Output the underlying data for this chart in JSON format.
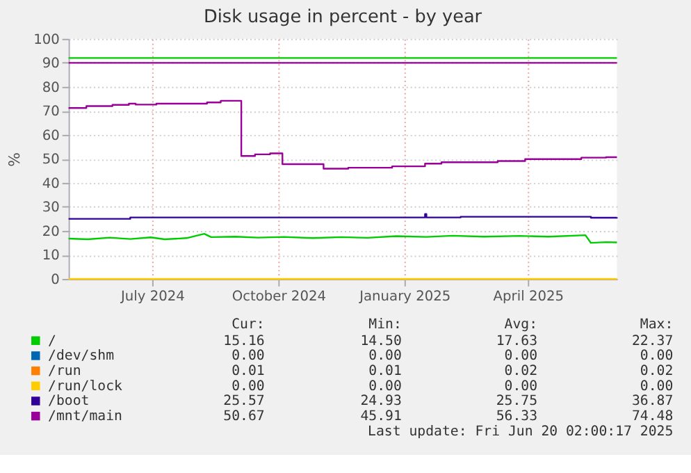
{
  "chart_data": {
    "type": "line",
    "title": "Disk usage in percent - by year",
    "ylabel": "%",
    "xlim": [
      "2024-05-16",
      "2025-06-20"
    ],
    "xticks": [
      {
        "value": "2024-07-16",
        "label": "July 2024"
      },
      {
        "value": "2024-10-16",
        "label": "October 2024"
      },
      {
        "value": "2025-01-16",
        "label": "January 2025"
      },
      {
        "value": "2025-04-16",
        "label": "April 2025"
      }
    ],
    "ylim": [
      0,
      100
    ],
    "yticks": [
      0,
      10,
      20,
      30,
      40,
      50,
      60,
      70,
      80,
      90,
      100
    ],
    "grid": true,
    "legend": "bottom",
    "ref_lines": [
      {
        "axis": "y",
        "value": 92,
        "color": "#00cc00"
      },
      {
        "axis": "y",
        "value": 90,
        "color": "#990099"
      }
    ],
    "series": [
      {
        "name": "/",
        "color": "#00cc00",
        "x": [
          "2024-05-16",
          "2024-05-30",
          "2024-06-15",
          "2024-06-30",
          "2024-07-15",
          "2024-07-25",
          "2024-08-10",
          "2024-08-23",
          "2024-08-28",
          "2024-09-15",
          "2024-10-01",
          "2024-10-20",
          "2024-11-10",
          "2024-12-01",
          "2024-12-20",
          "2025-01-10",
          "2025-02-01",
          "2025-02-20",
          "2025-03-15",
          "2025-04-10",
          "2025-05-01",
          "2025-05-28",
          "2025-06-01",
          "2025-06-12",
          "2025-06-20"
        ],
        "values": [
          16.8,
          16.5,
          17.2,
          16.6,
          17.3,
          16.5,
          17.0,
          18.8,
          17.4,
          17.6,
          17.2,
          17.5,
          17.0,
          17.4,
          17.1,
          17.8,
          17.5,
          18.0,
          17.6,
          17.9,
          17.6,
          18.2,
          15.0,
          15.3,
          15.2
        ]
      },
      {
        "name": "/dev/shm",
        "color": "#0066b3",
        "type": "line",
        "values": [
          null,
          null
        ]
      },
      {
        "name": "/run",
        "color": "#ff8000",
        "type": "line",
        "values": [
          null,
          null
        ]
      },
      {
        "name": "/run/lock",
        "color": "#ffcc00",
        "type": "line",
        "x": [
          "2024-05-16",
          "2025-06-20"
        ],
        "values": [
          0,
          0
        ]
      },
      {
        "name": "/boot",
        "color": "#330099",
        "type": "step",
        "x": [
          "2024-05-16",
          "2024-06-30",
          "2025-01-30",
          "2025-01-31",
          "2025-02-01",
          "2025-02-26",
          "2025-06-01",
          "2025-06-20"
        ],
        "values": [
          25.0,
          25.6,
          25.6,
          27.0,
          25.6,
          25.9,
          25.5,
          25.6
        ]
      },
      {
        "name": "/mnt/main",
        "color": "#990099",
        "type": "step",
        "x": [
          "2024-05-16",
          "2024-05-29",
          "2024-06-17",
          "2024-06-29",
          "2024-07-04",
          "2024-07-19",
          "2024-08-25",
          "2024-09-04",
          "2024-09-19",
          "2024-09-29",
          "2024-10-10",
          "2024-10-19",
          "2024-11-18",
          "2024-12-06",
          "2025-01-07",
          "2025-01-31",
          "2025-02-12",
          "2025-03-25",
          "2025-04-14",
          "2025-05-25",
          "2025-06-12",
          "2025-06-20"
        ],
        "values": [
          71.2,
          72.0,
          72.5,
          73.0,
          72.6,
          73.0,
          73.5,
          74.2,
          51.2,
          51.9,
          52.3,
          47.8,
          45.9,
          46.3,
          46.9,
          48.0,
          48.6,
          49.1,
          49.9,
          50.5,
          50.7,
          50.7
        ]
      }
    ],
    "annotations": [
      "Cur:",
      "Min:",
      "Avg:",
      "Max:",
      "15.16",
      "14.50",
      "17.63",
      "22.37",
      "0.00",
      "0.00",
      "0.00",
      "0.00",
      "0.01",
      "0.01",
      "0.02",
      "0.02",
      "0.00",
      "0.00",
      "0.00",
      "0.00",
      "25.57",
      "24.93",
      "25.75",
      "36.87",
      "50.67",
      "45.91",
      "56.33",
      "74.48",
      "Last update: Fri Jun 20 02:00:17 2025"
    ]
  }
}
